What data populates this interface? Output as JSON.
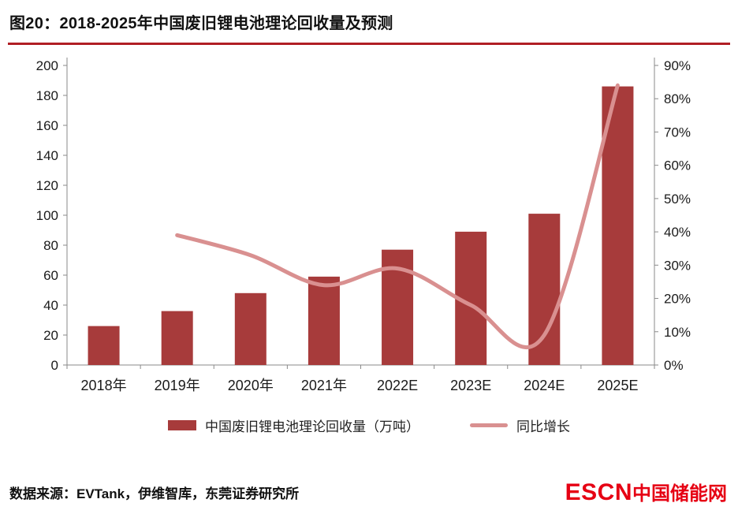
{
  "header": {
    "title": "图20：2018-2025年中国废旧锂电池理论回收量及预测"
  },
  "chart_data": {
    "type": "bar",
    "title": "2018-2025年中国废旧锂电池理论回收量及预测",
    "categories": [
      "2018年",
      "2019年",
      "2020年",
      "2021年",
      "2022E",
      "2023E",
      "2024E",
      "2025E"
    ],
    "series": [
      {
        "name": "中国废旧锂电池理论回收量（万吨）",
        "type": "bar",
        "axis": "left",
        "color": "#A73B3B",
        "values": [
          26,
          36,
          48,
          59,
          77,
          89,
          101,
          186
        ]
      },
      {
        "name": "同比增长",
        "type": "line",
        "axis": "right",
        "color": "#D99090",
        "values": [
          null,
          39,
          33,
          24,
          29,
          18,
          9,
          84
        ]
      }
    ],
    "left_axis": {
      "min": 0,
      "max": 200,
      "step": 20,
      "tick_labels": [
        "0",
        "20",
        "40",
        "60",
        "80",
        "100",
        "120",
        "140",
        "160",
        "180",
        "200"
      ]
    },
    "right_axis": {
      "min": 0,
      "max": 90,
      "step": 10,
      "tick_labels": [
        "0%",
        "10%",
        "20%",
        "30%",
        "40%",
        "50%",
        "60%",
        "70%",
        "80%",
        "90%"
      ]
    },
    "grid": false,
    "legend_position": "bottom"
  },
  "legend": {
    "bar_label": "中国废旧锂电池理论回收量（万吨）",
    "line_label": "同比增长"
  },
  "footer": {
    "source": "数据来源：EVTank，伊维智库，东莞证券研究所",
    "logo_escn": "ESCN",
    "logo_cn": "中国储能网"
  },
  "colors": {
    "bar": "#A73B3B",
    "line": "#D99090",
    "rule": "#B01E24",
    "axis": "#8A8A8A",
    "tick_text": "#1A1A1A",
    "logo": "#E60013"
  }
}
